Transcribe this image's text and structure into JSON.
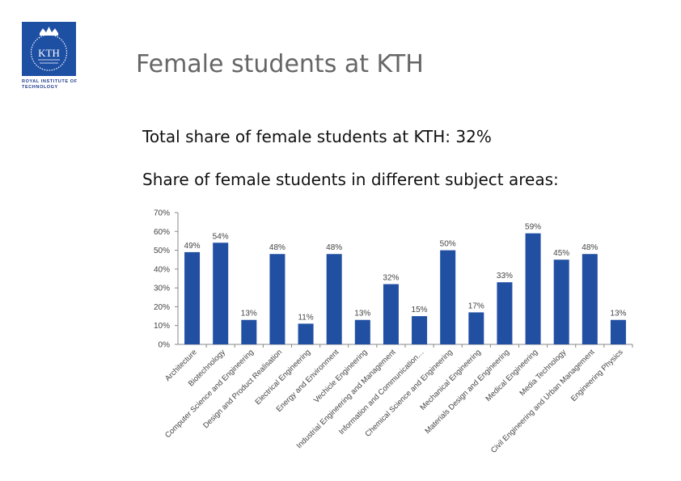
{
  "page": {
    "title": "Female students at KTH",
    "total_line": "Total share of female students at KTH: 32%",
    "areas_line": "Share of female students in different subject areas:"
  },
  "logo": {
    "text": "KTH",
    "caption": "ROYAL INSTITUTE OF TECHNOLOGY",
    "color": "#1d4fa3"
  },
  "chart_data": {
    "type": "bar",
    "categories": [
      "Architecture",
      "Biotechnology",
      "Computer Science and Engineering",
      "Design and Product Realisation",
      "Electrical Engineering",
      "Energy and Environment",
      "Vechicle Engineering",
      "Industrial Engineering and Management",
      "Information and Communication…",
      "Chemical Science and Engineering",
      "Mechanical Engineering",
      "Materials Design and Engineering",
      "Medical Engineering",
      "Media Technology",
      "Civil Engineering and Urban Management",
      "Engineering Physics"
    ],
    "values": [
      49,
      54,
      13,
      48,
      11,
      48,
      13,
      32,
      15,
      50,
      17,
      33,
      59,
      45,
      48,
      13
    ],
    "value_labels": [
      "49%",
      "54%",
      "13%",
      "48%",
      "11%",
      "48%",
      "13%",
      "32%",
      "15%",
      "50%",
      "17%",
      "33%",
      "59%",
      "45%",
      "48%",
      "13%"
    ],
    "yticks": [
      "0%",
      "10%",
      "20%",
      "30%",
      "40%",
      "50%",
      "60%",
      "70%"
    ],
    "ylim": [
      0,
      70
    ],
    "grid": false,
    "bar_color": "#2150a3",
    "title": "",
    "xlabel": "",
    "ylabel": ""
  }
}
